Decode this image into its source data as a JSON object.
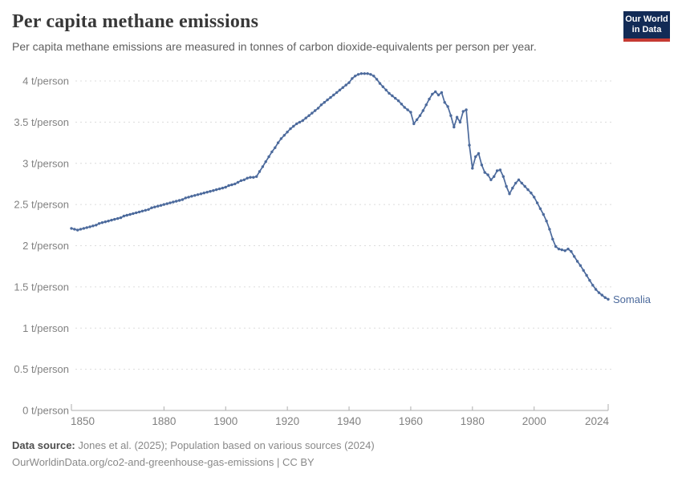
{
  "header": {
    "title": "Per capita methane emissions",
    "subtitle": "Per capita methane emissions are measured in tonnes of carbon dioxide-equivalents per person per year.",
    "logo": {
      "line1": "Our World",
      "line2": "in Data",
      "bg_color": "#122B56",
      "stripe_color": "#C53A32"
    }
  },
  "chart_data": {
    "type": "line",
    "title": "Per capita methane emissions",
    "xlabel": "",
    "ylabel": "",
    "unit": "t/person",
    "x_range": [
      1850,
      2024
    ],
    "y_range": [
      0,
      4.25
    ],
    "grid": "horizontal-dashed",
    "legend_position": "end-of-line-label",
    "end_label": "Somalia",
    "x_ticks": [
      1850,
      1880,
      1900,
      1920,
      1940,
      1960,
      1980,
      2000,
      2024
    ],
    "y_ticks": [
      {
        "value": 0,
        "label": "0 t/person"
      },
      {
        "value": 0.5,
        "label": "0.5 t/person"
      },
      {
        "value": 1,
        "label": "1 t/person"
      },
      {
        "value": 1.5,
        "label": "1.5 t/person"
      },
      {
        "value": 2,
        "label": "2 t/person"
      },
      {
        "value": 2.5,
        "label": "2.5 t/person"
      },
      {
        "value": 3,
        "label": "3 t/person"
      },
      {
        "value": 3.5,
        "label": "3.5 t/person"
      },
      {
        "value": 4,
        "label": "4 t/person"
      }
    ],
    "colors": {
      "line": "#4C6A9C",
      "grid": "#dcdcdc",
      "axis_text": "#818181",
      "axis_line": "#aeaeae"
    },
    "series": [
      {
        "name": "Somalia",
        "color": "#4C6A9C",
        "start_year": 1850,
        "values": [
          2.21,
          2.2,
          2.19,
          2.2,
          2.21,
          2.22,
          2.23,
          2.24,
          2.25,
          2.27,
          2.28,
          2.29,
          2.3,
          2.31,
          2.32,
          2.33,
          2.34,
          2.36,
          2.37,
          2.38,
          2.39,
          2.4,
          2.41,
          2.42,
          2.43,
          2.44,
          2.46,
          2.47,
          2.48,
          2.49,
          2.5,
          2.51,
          2.52,
          2.53,
          2.54,
          2.55,
          2.56,
          2.58,
          2.59,
          2.6,
          2.61,
          2.62,
          2.63,
          2.64,
          2.65,
          2.66,
          2.67,
          2.68,
          2.69,
          2.7,
          2.71,
          2.73,
          2.74,
          2.75,
          2.77,
          2.79,
          2.8,
          2.82,
          2.83,
          2.83,
          2.84,
          2.9,
          2.96,
          3.02,
          3.08,
          3.14,
          3.19,
          3.25,
          3.3,
          3.34,
          3.38,
          3.42,
          3.45,
          3.48,
          3.5,
          3.52,
          3.55,
          3.58,
          3.61,
          3.64,
          3.67,
          3.71,
          3.74,
          3.77,
          3.8,
          3.83,
          3.86,
          3.89,
          3.92,
          3.95,
          3.98,
          4.03,
          4.06,
          4.08,
          4.09,
          4.09,
          4.09,
          4.08,
          4.06,
          4.02,
          3.97,
          3.93,
          3.89,
          3.85,
          3.82,
          3.79,
          3.76,
          3.72,
          3.68,
          3.65,
          3.62,
          3.48,
          3.53,
          3.58,
          3.64,
          3.71,
          3.78,
          3.84,
          3.87,
          3.83,
          3.86,
          3.74,
          3.69,
          3.58,
          3.44,
          3.56,
          3.5,
          3.63,
          3.65,
          3.22,
          2.94,
          3.08,
          3.12,
          2.98,
          2.89,
          2.86,
          2.8,
          2.84,
          2.91,
          2.92,
          2.84,
          2.72,
          2.63,
          2.7,
          2.76,
          2.8,
          2.76,
          2.72,
          2.68,
          2.64,
          2.59,
          2.52,
          2.45,
          2.38,
          2.3,
          2.2,
          2.08,
          1.99,
          1.96,
          1.95,
          1.94,
          1.96,
          1.93,
          1.87,
          1.81,
          1.76,
          1.7,
          1.64,
          1.58,
          1.52,
          1.47,
          1.43,
          1.4,
          1.37,
          1.35
        ]
      }
    ]
  },
  "footer": {
    "source_label": "Data source:",
    "source_text": "Jones et al. (2025); Population based on various sources (2024)",
    "note_text": "OurWorldinData.org/co2-and-greenhouse-gas-emissions | CC BY"
  }
}
